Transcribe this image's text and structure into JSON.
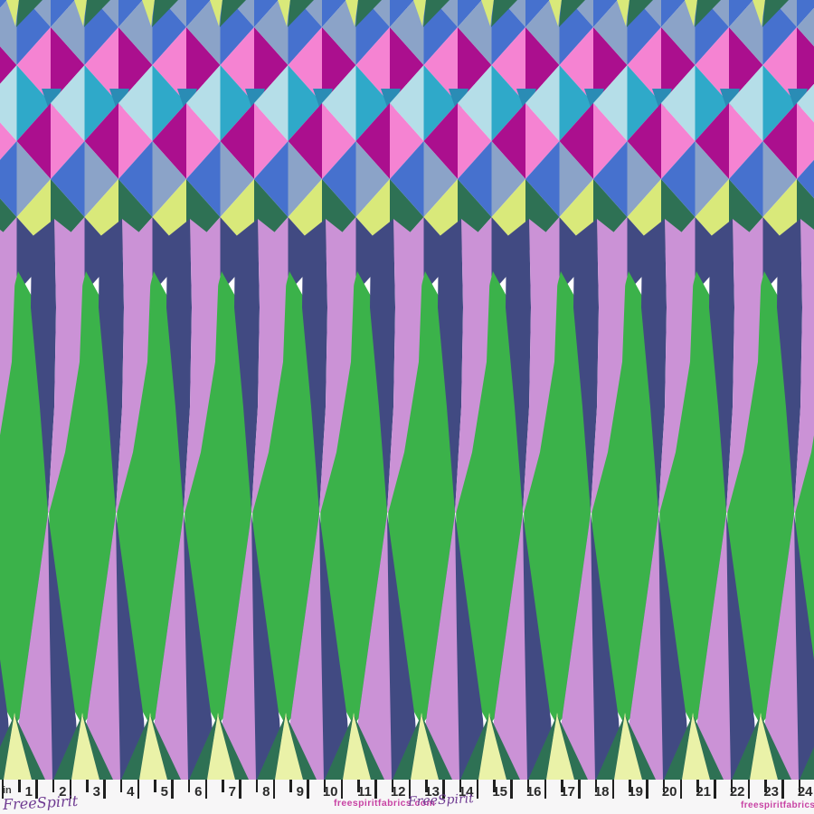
{
  "title": "Geometric printed fabric swatch with selvedge ruler",
  "palette": {
    "slate": "#8ba3c8",
    "royal": "#4671ce",
    "lime": "#d9e97a",
    "lime_pale": "#eaf2a8",
    "forest": "#2e7154",
    "pink": "#f583d2",
    "magenta": "#ab0f8e",
    "cyan_light": "#b5dee8",
    "teal": "#2fa9c9",
    "teal_dark": "#2a8cb5",
    "green": "#3bb24a",
    "navy": "#414a82",
    "lavender": "#cb92d6",
    "selvedge_bg": "#f7f6f7",
    "tick_color": "#1f1f1f",
    "number_color": "#2a2a2a",
    "url_color": "#c843a4",
    "logo_color": "#6f3b92"
  },
  "selvedge": {
    "unit_label": "in",
    "ruler_numbers": [
      1,
      2,
      3,
      4,
      5,
      6,
      7,
      8,
      9,
      10,
      11,
      12,
      13,
      14,
      15,
      16,
      17,
      18,
      19,
      20,
      21,
      22,
      23,
      24
    ],
    "brand_url": "freespiritfabrics.com",
    "brand_logo": "FreeSpirit"
  }
}
